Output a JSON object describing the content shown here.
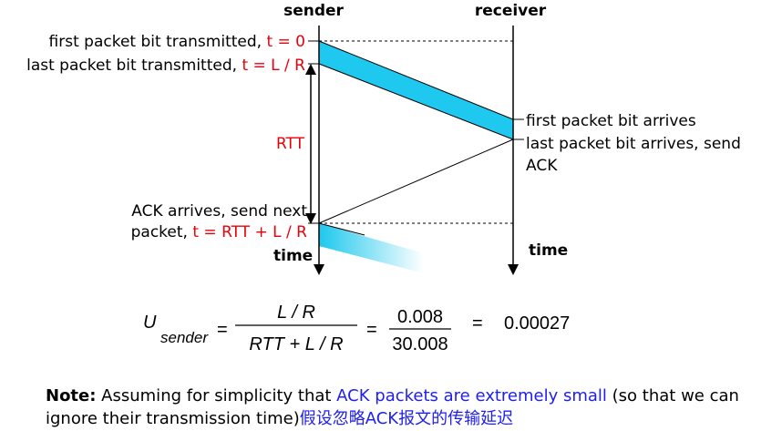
{
  "columns": {
    "sender": "sender",
    "receiver": "receiver"
  },
  "sender_labels": {
    "first_bit_text": "first packet bit transmitted, ",
    "first_bit_time": "t = 0",
    "last_bit_text": "last packet bit transmitted, ",
    "last_bit_time": "t = L / R",
    "rtt": "RTT",
    "ack_arrives_line1": "ACK arrives, send next",
    "ack_arrives_line2": "packet, ",
    "ack_arrives_time": "t = RTT + L / R",
    "time": "time"
  },
  "receiver_labels": {
    "first_bit_arrives": "first packet bit arrives",
    "last_bit_arrives_line1": "last packet bit arrives, send",
    "last_bit_arrives_line2": "ACK",
    "time": "time"
  },
  "formula": {
    "lhs_symbol": "U",
    "lhs_subscript": "sender",
    "equals": "=",
    "numerator": "L / R",
    "denominator": "RTT + L / R",
    "value_numerator": "0.008",
    "value_denominator": "30.008",
    "result": "0.00027"
  },
  "note": {
    "label": "Note:",
    "text_before": " Assuming for simplicity that ",
    "highlight": "ACK packets are extremely small",
    "text_after": " (so that we can ignore their transmission time)",
    "chinese": "假设忽略ACK报文的传输延迟"
  },
  "colors": {
    "packet_fill": "#1ec8ee",
    "red_text": "#e8000b",
    "blue_text": "#2020ee"
  }
}
